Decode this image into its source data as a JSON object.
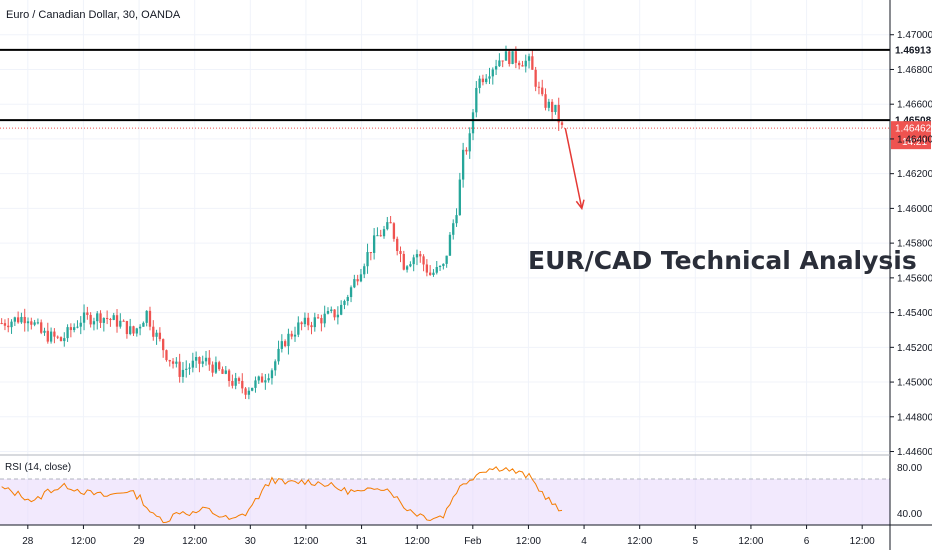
{
  "header": {
    "symbol_label": "Euro / Canadian Dollar, 30, OANDA"
  },
  "colors": {
    "up": "#26a69a",
    "down": "#ef5350",
    "rsi_line": "#f57c00",
    "rsi_band": "#e8d7fb",
    "level_line": "#000000",
    "price_line": "#ef5350",
    "arrow": "#e53935"
  },
  "chart_data": [
    {
      "type": "candlestick",
      "title": "EUR/CAD Technical Analysis",
      "y_ticks": [
        "1.47000",
        "1.46800",
        "1.46600",
        "1.46400",
        "1.46200",
        "1.46000",
        "1.45800",
        "1.45600",
        "1.45400",
        "1.45200",
        "1.45000",
        "1.44800",
        "1.44600"
      ],
      "ylim": [
        1.4458,
        1.472
      ],
      "x_ticks": [
        "28",
        "12:00",
        "29",
        "12:00",
        "30",
        "12:00",
        "31",
        "12:00",
        "Feb",
        "12:00",
        "4",
        "12:00",
        "5",
        "12:00",
        "6",
        "12:00"
      ],
      "last_bar_index": 170,
      "total_slots": 270,
      "close_path": [
        [
          0,
          1.4534
        ],
        [
          8,
          1.4538
        ],
        [
          12,
          1.4528
        ],
        [
          18,
          1.4524
        ],
        [
          24,
          1.4536
        ],
        [
          30,
          1.4538
        ],
        [
          36,
          1.4534
        ],
        [
          40,
          1.4528
        ],
        [
          44,
          1.454
        ],
        [
          46,
          1.453
        ],
        [
          50,
          1.4516
        ],
        [
          54,
          1.4506
        ],
        [
          58,
          1.451
        ],
        [
          62,
          1.4512
        ],
        [
          66,
          1.4506
        ],
        [
          70,
          1.45
        ],
        [
          74,
          1.4496
        ],
        [
          78,
          1.45
        ],
        [
          82,
          1.4508
        ],
        [
          86,
          1.4524
        ],
        [
          90,
          1.4532
        ],
        [
          96,
          1.4536
        ],
        [
          102,
          1.454
        ],
        [
          106,
          1.4554
        ],
        [
          110,
          1.457
        ],
        [
          114,
          1.4584
        ],
        [
          118,
          1.459
        ],
        [
          122,
          1.4568
        ],
        [
          126,
          1.4574
        ],
        [
          130,
          1.4562
        ],
        [
          134,
          1.4566
        ],
        [
          138,
          1.46
        ],
        [
          140,
          1.463
        ],
        [
          142,
          1.464
        ],
        [
          144,
          1.4672
        ],
        [
          148,
          1.468
        ],
        [
          152,
          1.4688
        ],
        [
          156,
          1.4686
        ],
        [
          160,
          1.4684
        ],
        [
          164,
          1.4662
        ],
        [
          168,
          1.4656
        ],
        [
          170,
          1.4646
        ]
      ],
      "horizontal_levels": [
        {
          "label": "1.46913",
          "value": 1.46913
        },
        {
          "label": "1.46508",
          "value": 1.46508
        }
      ],
      "last_price": {
        "label": "1.46462",
        "value": 1.46462,
        "countdown": "14:21"
      },
      "annotation_arrow": {
        "from": [
          1.46462,
          171
        ],
        "to": [
          1.46,
          176
        ]
      }
    },
    {
      "type": "line",
      "title": "RSI (14, close)",
      "y_ticks": [
        "80.00",
        "40.00"
      ],
      "ylim": [
        30,
        90
      ],
      "band": [
        30,
        70
      ],
      "path": [
        [
          0,
          62
        ],
        [
          6,
          56
        ],
        [
          10,
          50
        ],
        [
          14,
          60
        ],
        [
          20,
          64
        ],
        [
          26,
          58
        ],
        [
          32,
          55
        ],
        [
          38,
          60
        ],
        [
          42,
          54
        ],
        [
          46,
          38
        ],
        [
          50,
          34
        ],
        [
          54,
          42
        ],
        [
          58,
          40
        ],
        [
          62,
          44
        ],
        [
          66,
          38
        ],
        [
          70,
          34
        ],
        [
          74,
          40
        ],
        [
          78,
          55
        ],
        [
          82,
          70
        ],
        [
          86,
          66
        ],
        [
          92,
          68
        ],
        [
          98,
          66
        ],
        [
          104,
          60
        ],
        [
          110,
          58
        ],
        [
          114,
          64
        ],
        [
          118,
          60
        ],
        [
          122,
          46
        ],
        [
          126,
          40
        ],
        [
          130,
          36
        ],
        [
          134,
          38
        ],
        [
          138,
          60
        ],
        [
          142,
          70
        ],
        [
          146,
          78
        ],
        [
          152,
          80
        ],
        [
          156,
          76
        ],
        [
          160,
          72
        ],
        [
          164,
          58
        ],
        [
          168,
          46
        ],
        [
          170,
          40
        ]
      ]
    }
  ]
}
